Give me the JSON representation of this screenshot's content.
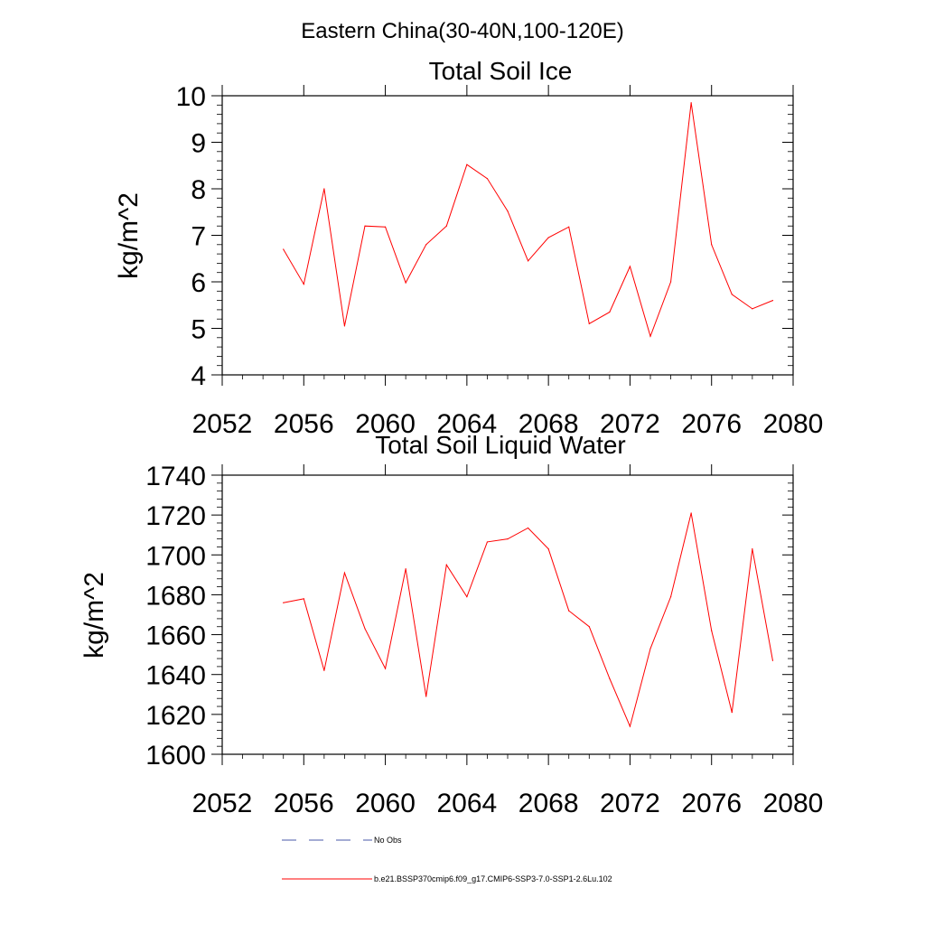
{
  "figure_title": "Eastern China(30-40N,100-120E)",
  "chart_data": [
    {
      "type": "line",
      "title": "Total Soil Ice",
      "xlabel": "",
      "ylabel": "kg/m^2",
      "xlim": [
        2052,
        2080
      ],
      "ylim": [
        4,
        10
      ],
      "x_ticks": [
        2052,
        2056,
        2060,
        2064,
        2068,
        2072,
        2076,
        2080
      ],
      "y_ticks": [
        4,
        5,
        6,
        7,
        8,
        9,
        10
      ],
      "grid": false,
      "series": [
        {
          "name": "b.e21.BSSP370cmip6.f09_g17.CMIP6-SSP3-7.0-SSP1-2.6Lu.102",
          "color": "#ff0000",
          "x": [
            2055,
            2056,
            2057,
            2058,
            2059,
            2060,
            2061,
            2062,
            2063,
            2064,
            2065,
            2066,
            2067,
            2068,
            2069,
            2070,
            2071,
            2072,
            2073,
            2074,
            2075,
            2076,
            2077,
            2078,
            2079
          ],
          "values": [
            6.7,
            5.95,
            8.0,
            5.05,
            7.2,
            7.18,
            5.98,
            6.8,
            7.2,
            8.52,
            8.22,
            7.52,
            6.45,
            6.95,
            7.18,
            5.1,
            5.35,
            6.33,
            4.83,
            6.0,
            9.85,
            6.8,
            5.73,
            5.42,
            5.6
          ]
        }
      ]
    },
    {
      "type": "line",
      "title": "Total Soil Liquid Water",
      "xlabel": "",
      "ylabel": "kg/m^2",
      "xlim": [
        2052,
        2080
      ],
      "ylim": [
        1600,
        1740
      ],
      "x_ticks": [
        2052,
        2056,
        2060,
        2064,
        2068,
        2072,
        2076,
        2080
      ],
      "y_ticks": [
        1600,
        1620,
        1640,
        1660,
        1680,
        1700,
        1720,
        1740
      ],
      "grid": false,
      "series": [
        {
          "name": "b.e21.BSSP370cmip6.f09_g17.CMIP6-SSP3-7.0-SSP1-2.6Lu.102",
          "color": "#ff0000",
          "x": [
            2055,
            2056,
            2057,
            2058,
            2059,
            2060,
            2061,
            2062,
            2063,
            2064,
            2065,
            2066,
            2067,
            2068,
            2069,
            2070,
            2071,
            2072,
            2073,
            2074,
            2075,
            2076,
            2077,
            2078,
            2079
          ],
          "values": [
            1676,
            1678,
            1642,
            1691,
            1663,
            1643,
            1693,
            1629,
            1695,
            1679,
            1706.5,
            1708,
            1713.5,
            1703,
            1672,
            1664,
            1638,
            1614,
            1653,
            1679,
            1721,
            1662,
            1621,
            1703,
            1647
          ]
        }
      ]
    }
  ],
  "legend": {
    "placement": "bottom-left",
    "items": [
      {
        "label": "No Obs",
        "style": "dashed",
        "color": "#4a5aa8"
      },
      {
        "label": "b.e21.BSSP370cmip6.f09_g17.CMIP6-SSP3-7.0-SSP1-2.6Lu.102",
        "style": "solid",
        "color": "#ff0000"
      }
    ]
  }
}
